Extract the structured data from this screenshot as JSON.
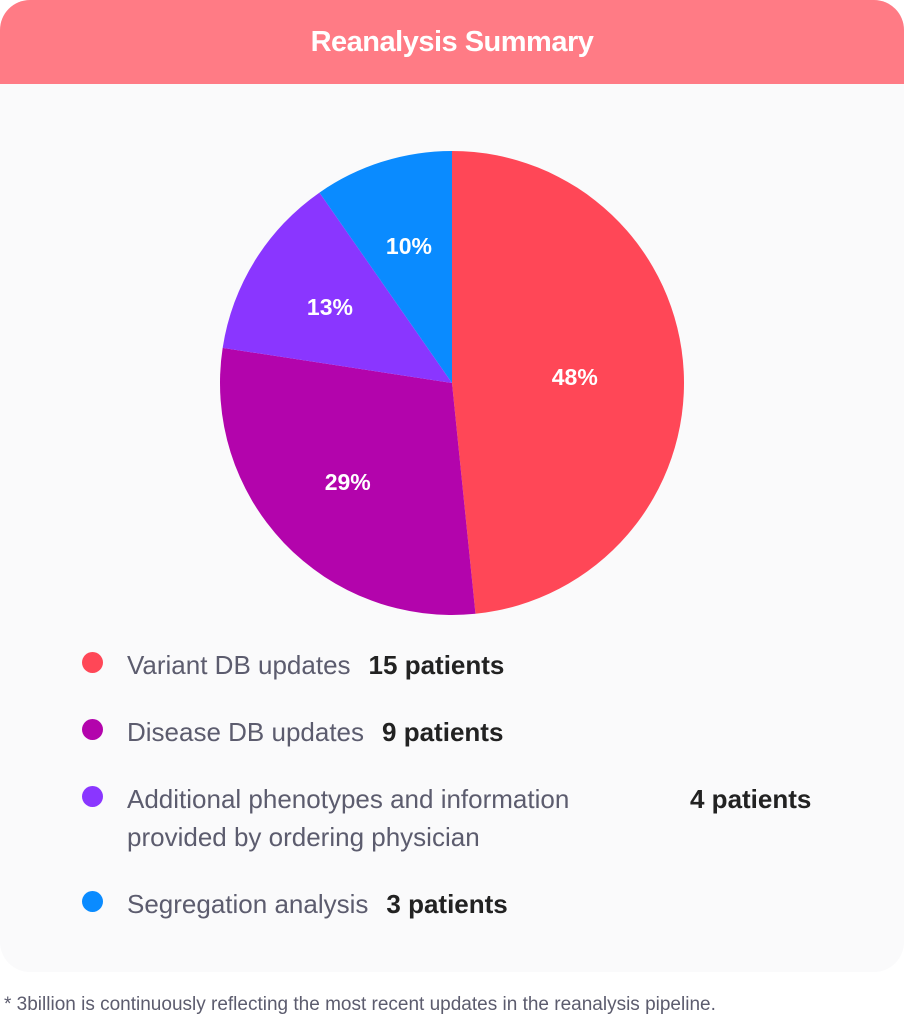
{
  "title": "Reanalysis Summary",
  "chart_data": {
    "type": "pie",
    "title": "Reanalysis Summary",
    "slices": [
      {
        "label": "Variant DB updates",
        "value": 15,
        "percent": 48,
        "percent_label": "48%",
        "count_label": "15 patients",
        "color": "#ff4757"
      },
      {
        "label": "Disease DB updates",
        "value": 9,
        "percent": 29,
        "percent_label": "29%",
        "count_label": "9 patients",
        "color": "#b304ac"
      },
      {
        "label": "Additional phenotypes and information provided by ordering physician",
        "value": 4,
        "percent": 13,
        "percent_label": "13%",
        "count_label": "4 patients",
        "color": "#8a36ff"
      },
      {
        "label": "Segregation analysis",
        "value": 3,
        "percent": 10,
        "percent_label": "10%",
        "count_label": "3 patients",
        "color": "#0a8bff"
      }
    ],
    "start_angle": "12 o'clock",
    "direction": "clockwise",
    "legend_position": "bottom"
  },
  "legend": [
    {
      "label": "Variant DB updates",
      "value": "15 patients",
      "color": "#ff4757"
    },
    {
      "label": "Disease DB updates",
      "value": "9 patients",
      "color": "#b304ac"
    },
    {
      "label": "Additional phenotypes and information provided by ordering physician",
      "value": "4 patients",
      "color": "#8a36ff"
    },
    {
      "label": "Segregation analysis",
      "value": "3 patients",
      "color": "#0a8bff"
    }
  ],
  "footnote": "* 3billion is continuously reflecting the most recent updates in the reanalysis pipeline.",
  "colors": {
    "header": "#ff7b85",
    "card_background": "#fafafb",
    "legend_text": "#5c5c6e",
    "value_text": "#222222"
  }
}
